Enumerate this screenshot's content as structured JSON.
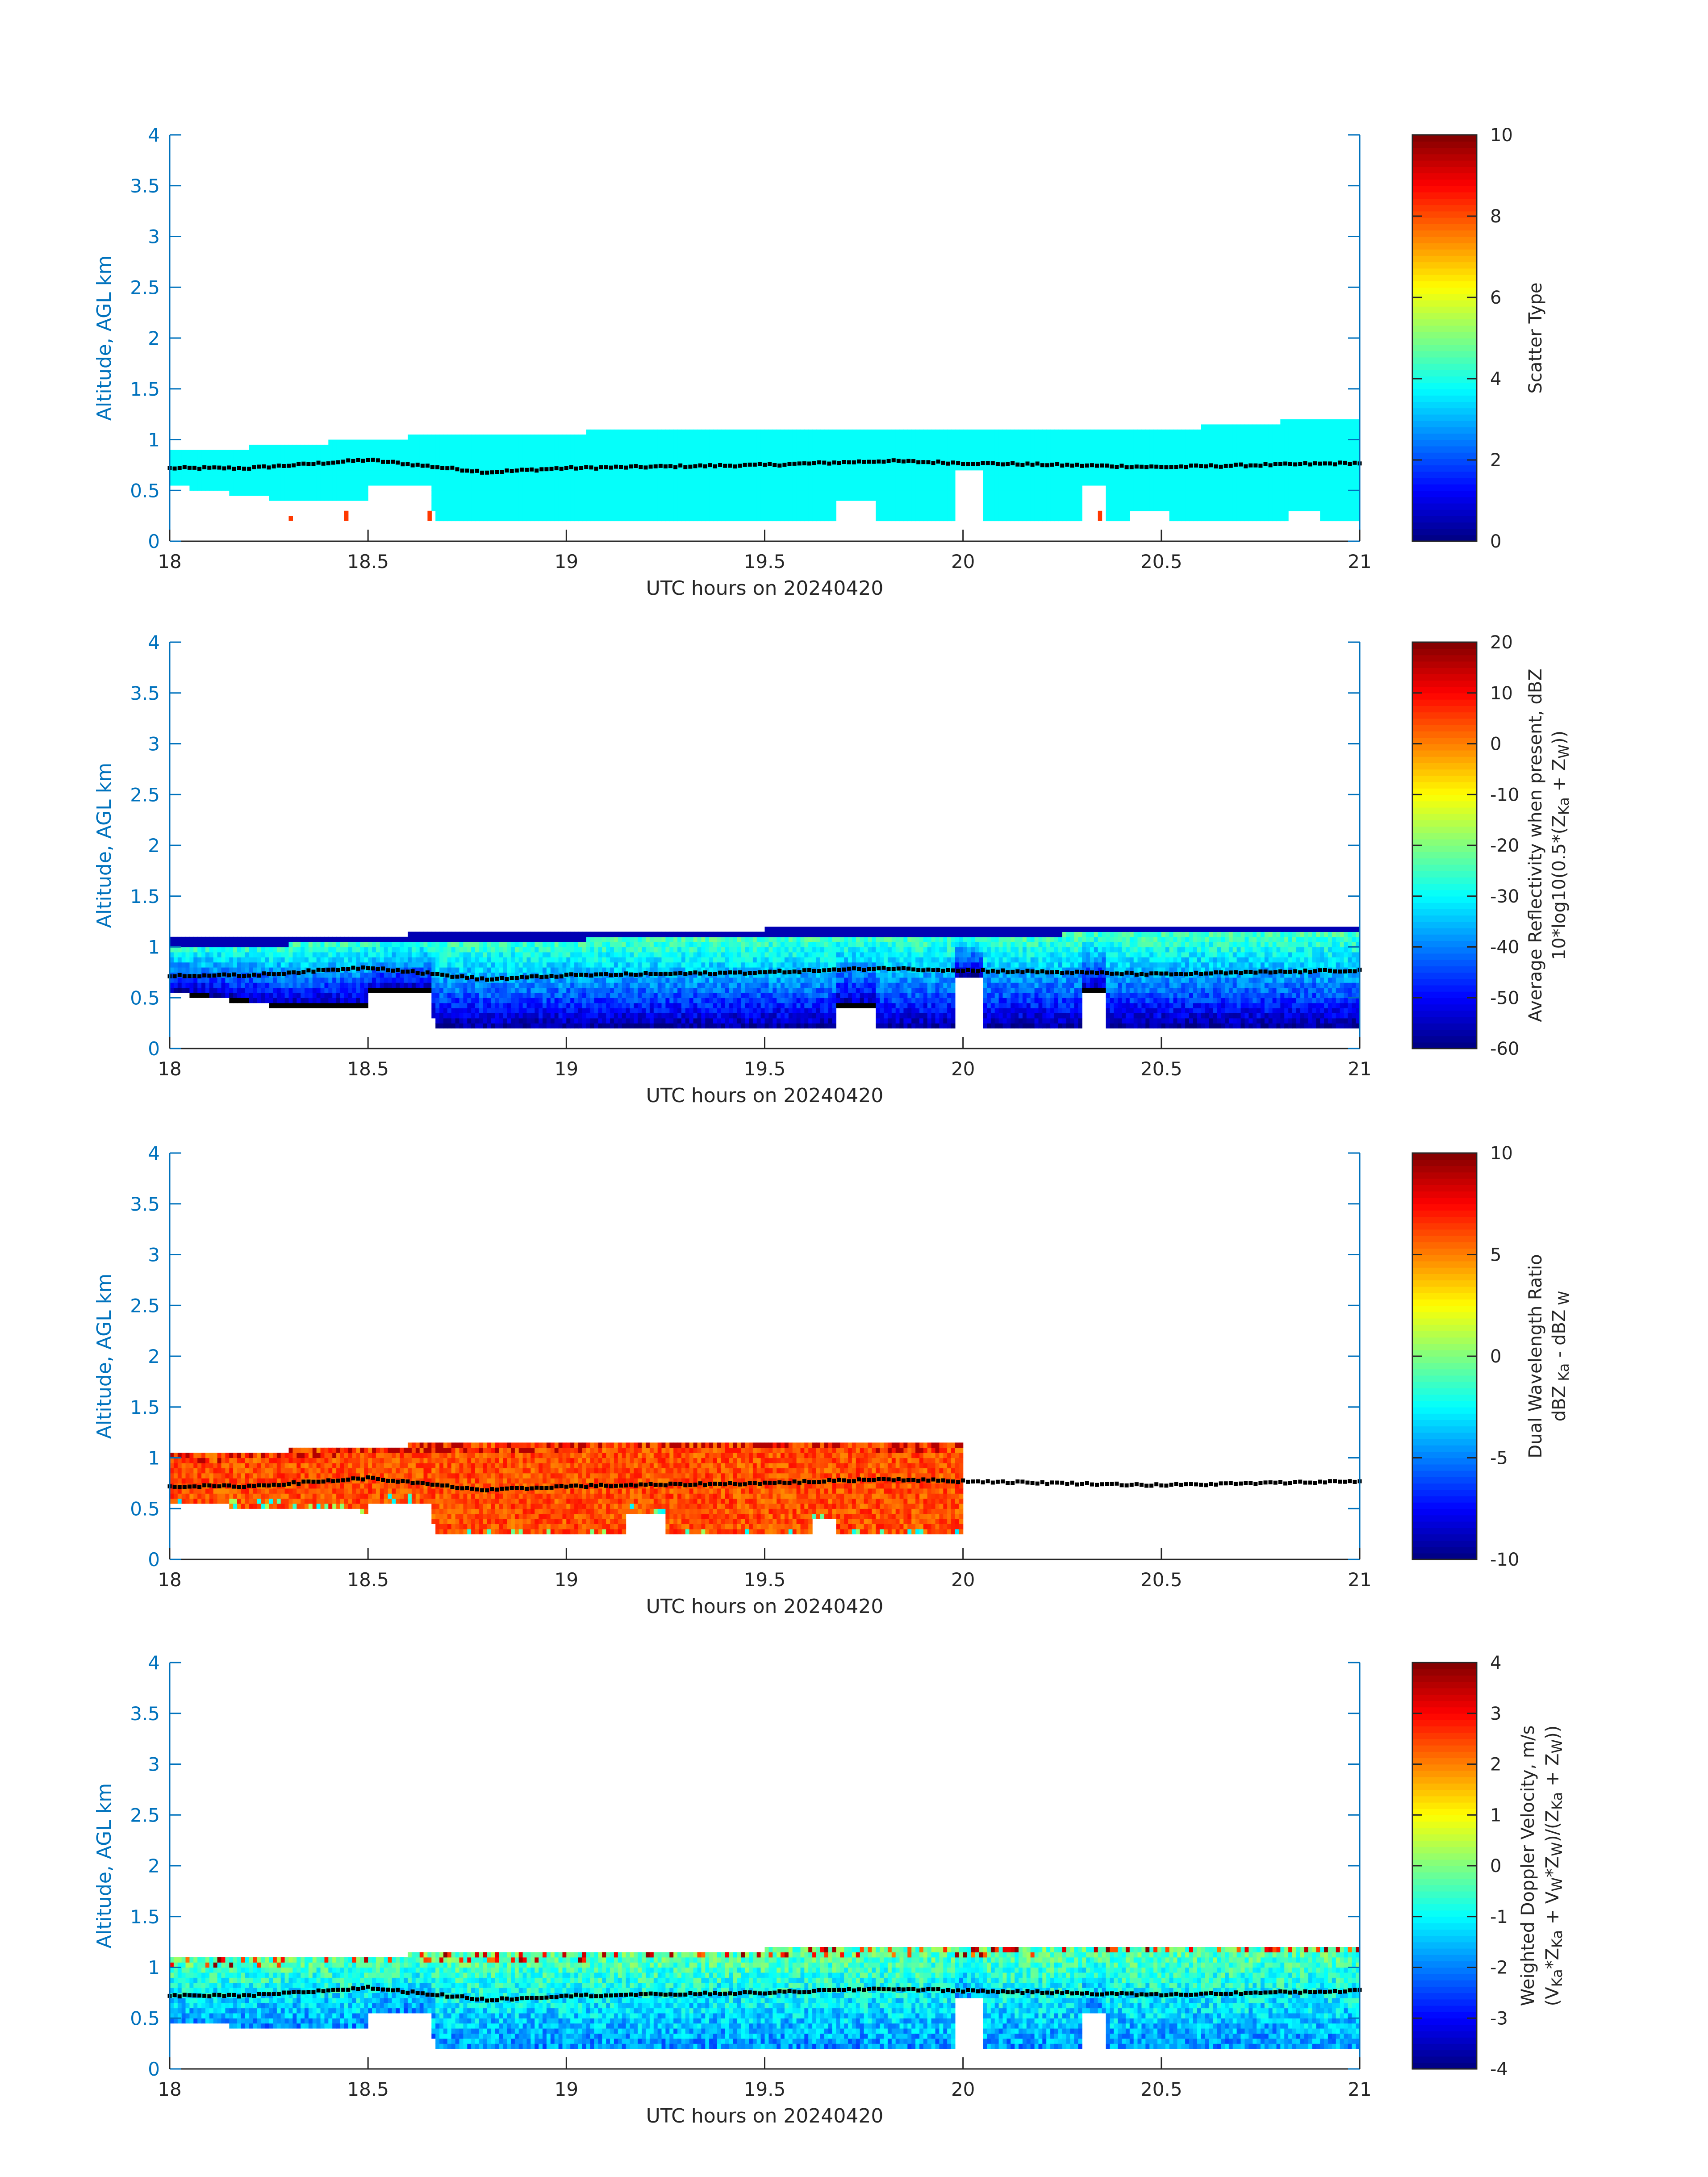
{
  "chart_data": [
    {
      "type": "heatmap",
      "xlabel": "UTC hours on 20240420",
      "ylabel": "Altitude, AGL km",
      "xlim": [
        18,
        21
      ],
      "ylim": [
        0,
        4
      ],
      "xticks": [
        "18",
        "18.5",
        "19",
        "19.5",
        "20",
        "20.5",
        "21"
      ],
      "yticks": [
        "0",
        "0.5",
        "1",
        "1.5",
        "2",
        "2.5",
        "3",
        "3.5",
        "4"
      ],
      "colorbar": {
        "label_lines": [
          "Scatter Type"
        ],
        "range": [
          0,
          10
        ],
        "ticks": [
          "0",
          "2",
          "4",
          "6",
          "8",
          "10"
        ],
        "colormap": "jet"
      },
      "field": {
        "kind": "scatter",
        "x_range": [
          18.0,
          21.0
        ],
        "base_km": 0.2,
        "fill_value": 3.8,
        "extra_marks": [
          {
            "x": 18.3,
            "y0": 0.2,
            "y1": 0.25,
            "value": 8.2
          },
          {
            "x": 18.44,
            "y0": 0.2,
            "y1": 0.3,
            "value": 8.2
          },
          {
            "x": 18.65,
            "y0": 0.2,
            "y1": 0.3,
            "value": 8.2
          },
          {
            "x": 20.34,
            "y0": 0.2,
            "y1": 0.3,
            "value": 8.2
          }
        ]
      },
      "cloud_top_km": [
        [
          18.0,
          0.85
        ],
        [
          18.6,
          1.0
        ],
        [
          19.5,
          1.1
        ],
        [
          20.6,
          1.1
        ],
        [
          21.0,
          1.2
        ]
      ],
      "cloud_base_km": [
        [
          18.0,
          0.55
        ],
        [
          18.3,
          0.4
        ],
        [
          18.66,
          0.4
        ],
        [
          18.67,
          0.2
        ],
        [
          21.0,
          0.2
        ]
      ],
      "gaps": [
        [
          18.5,
          18.66,
          0.55
        ],
        [
          19.68,
          19.78,
          0.4
        ],
        [
          19.98,
          20.05,
          0.7
        ],
        [
          20.3,
          20.36,
          0.55
        ],
        [
          20.42,
          20.52,
          0.3
        ],
        [
          20.82,
          20.9,
          0.3
        ]
      ],
      "dotted_line_km": [
        [
          18.0,
          0.72
        ],
        [
          18.2,
          0.72
        ],
        [
          18.5,
          0.8
        ],
        [
          18.8,
          0.68
        ],
        [
          19.0,
          0.72
        ],
        [
          19.5,
          0.75
        ],
        [
          19.8,
          0.79
        ],
        [
          20.0,
          0.77
        ],
        [
          20.5,
          0.73
        ],
        [
          21.0,
          0.77
        ]
      ]
    },
    {
      "type": "heatmap",
      "xlabel": "UTC hours on 20240420",
      "ylabel": "Altitude, AGL km",
      "xlim": [
        18,
        21
      ],
      "ylim": [
        0,
        4
      ],
      "xticks": [
        "18",
        "18.5",
        "19",
        "19.5",
        "20",
        "20.5",
        "21"
      ],
      "yticks": [
        "0",
        "0.5",
        "1",
        "1.5",
        "2",
        "2.5",
        "3",
        "3.5",
        "4"
      ],
      "colorbar": {
        "label_lines": [
          "Average Reflectivity when present, dBZ",
          "10*log10(0.5*(Z",
          "Ka",
          " + Z",
          "W",
          "))"
        ],
        "range": [
          -60,
          20
        ],
        "ticks": [
          "-60",
          "-50",
          "-40",
          "-30",
          "-20",
          "-10",
          "0",
          "10",
          "20"
        ],
        "colormap": "jet"
      },
      "field": {
        "kind": "reflectivity",
        "x_range": [
          18.0,
          21.0
        ],
        "base_km": 0.2,
        "top_value": -22,
        "bottom_value": -58
      },
      "cloud_top_km": [
        [
          18.0,
          1.05
        ],
        [
          18.6,
          1.1
        ],
        [
          19.5,
          1.15
        ],
        [
          21.0,
          1.2
        ]
      ],
      "cloud_base_km": [
        [
          18.0,
          0.55
        ],
        [
          18.3,
          0.4
        ],
        [
          18.66,
          0.4
        ],
        [
          18.67,
          0.2
        ],
        [
          21.0,
          0.2
        ]
      ],
      "gaps": [
        [
          18.5,
          18.66,
          0.55
        ],
        [
          19.68,
          19.78,
          0.4
        ],
        [
          19.98,
          20.05,
          0.7
        ],
        [
          20.3,
          20.36,
          0.55
        ]
      ],
      "dotted_line_km": [
        [
          18.0,
          0.72
        ],
        [
          18.2,
          0.72
        ],
        [
          18.5,
          0.8
        ],
        [
          18.8,
          0.68
        ],
        [
          19.0,
          0.72
        ],
        [
          19.5,
          0.75
        ],
        [
          19.8,
          0.79
        ],
        [
          20.0,
          0.77
        ],
        [
          20.5,
          0.73
        ],
        [
          21.0,
          0.77
        ]
      ]
    },
    {
      "type": "heatmap",
      "xlabel": "UTC hours on 20240420",
      "ylabel": "Altitude, AGL km",
      "xlim": [
        18,
        21
      ],
      "ylim": [
        0,
        4
      ],
      "xticks": [
        "18",
        "18.5",
        "19",
        "19.5",
        "20",
        "20.5",
        "21"
      ],
      "yticks": [
        "0",
        "0.5",
        "1",
        "1.5",
        "2",
        "2.5",
        "3",
        "3.5",
        "4"
      ],
      "colorbar": {
        "label_lines": [
          "Dual Wavelength Ratio",
          "dBZ",
          " Ka",
          " - dBZ",
          " W"
        ],
        "range": [
          -10,
          10
        ],
        "ticks": [
          "-10",
          "-5",
          "0",
          "5",
          "10"
        ],
        "colormap": "jet"
      },
      "field": {
        "kind": "dwr",
        "x_range": [
          18.0,
          20.0
        ],
        "base_km": 0.25,
        "fill_value": 6.0
      },
      "cloud_top_km": [
        [
          18.0,
          1.0
        ],
        [
          18.6,
          1.1
        ],
        [
          19.5,
          1.15
        ],
        [
          20.0,
          1.1
        ]
      ],
      "cloud_base_km": [
        [
          18.0,
          0.55
        ],
        [
          18.3,
          0.5
        ],
        [
          18.66,
          0.45
        ],
        [
          18.67,
          0.25
        ],
        [
          20.0,
          0.25
        ]
      ],
      "gaps": [
        [
          18.5,
          18.66,
          0.55
        ],
        [
          19.15,
          19.25,
          0.45
        ],
        [
          19.62,
          19.68,
          0.4
        ]
      ],
      "dotted_line_km": [
        [
          18.0,
          0.72
        ],
        [
          18.2,
          0.72
        ],
        [
          18.5,
          0.8
        ],
        [
          18.8,
          0.68
        ],
        [
          19.0,
          0.72
        ],
        [
          19.5,
          0.75
        ],
        [
          19.8,
          0.79
        ],
        [
          20.0,
          0.77
        ],
        [
          20.5,
          0.73
        ],
        [
          21.0,
          0.77
        ]
      ]
    },
    {
      "type": "heatmap",
      "xlabel": "UTC hours on 20240420",
      "ylabel": "Altitude, AGL km",
      "xlim": [
        18,
        21
      ],
      "ylim": [
        0,
        4
      ],
      "xticks": [
        "18",
        "18.5",
        "19",
        "19.5",
        "20",
        "20.5",
        "21"
      ],
      "yticks": [
        "0",
        "0.5",
        "1",
        "1.5",
        "2",
        "2.5",
        "3",
        "3.5",
        "4"
      ],
      "colorbar": {
        "label_lines": [
          "Weighted Doppler Velocity, m/s",
          "(V",
          "Ka",
          "*Z",
          "Ka",
          " + V",
          "W",
          "*Z",
          "W",
          ")/(Z",
          "Ka",
          " + Z",
          "W",
          "))"
        ],
        "range": [
          -4,
          4
        ],
        "ticks": [
          "-4",
          "-3",
          "-2",
          "-1",
          "0",
          "1",
          "2",
          "3",
          "4"
        ],
        "colormap": "jet"
      },
      "field": {
        "kind": "velocity",
        "x_range": [
          18.0,
          21.0
        ],
        "base_km": 0.2,
        "fill_value": -1.2
      },
      "cloud_top_km": [
        [
          18.0,
          1.05
        ],
        [
          18.6,
          1.1
        ],
        [
          19.5,
          1.15
        ],
        [
          21.0,
          1.2
        ]
      ],
      "cloud_base_km": [
        [
          18.0,
          0.45
        ],
        [
          18.3,
          0.4
        ],
        [
          18.66,
          0.4
        ],
        [
          18.67,
          0.2
        ],
        [
          21.0,
          0.2
        ]
      ],
      "gaps": [
        [
          18.5,
          18.66,
          0.55
        ],
        [
          19.98,
          20.05,
          0.7
        ],
        [
          20.3,
          20.36,
          0.55
        ]
      ],
      "dotted_line_km": [
        [
          18.0,
          0.72
        ],
        [
          18.2,
          0.72
        ],
        [
          18.5,
          0.8
        ],
        [
          18.8,
          0.68
        ],
        [
          19.0,
          0.72
        ],
        [
          19.5,
          0.75
        ],
        [
          19.8,
          0.79
        ],
        [
          20.0,
          0.77
        ],
        [
          20.5,
          0.73
        ],
        [
          21.0,
          0.77
        ]
      ]
    }
  ]
}
